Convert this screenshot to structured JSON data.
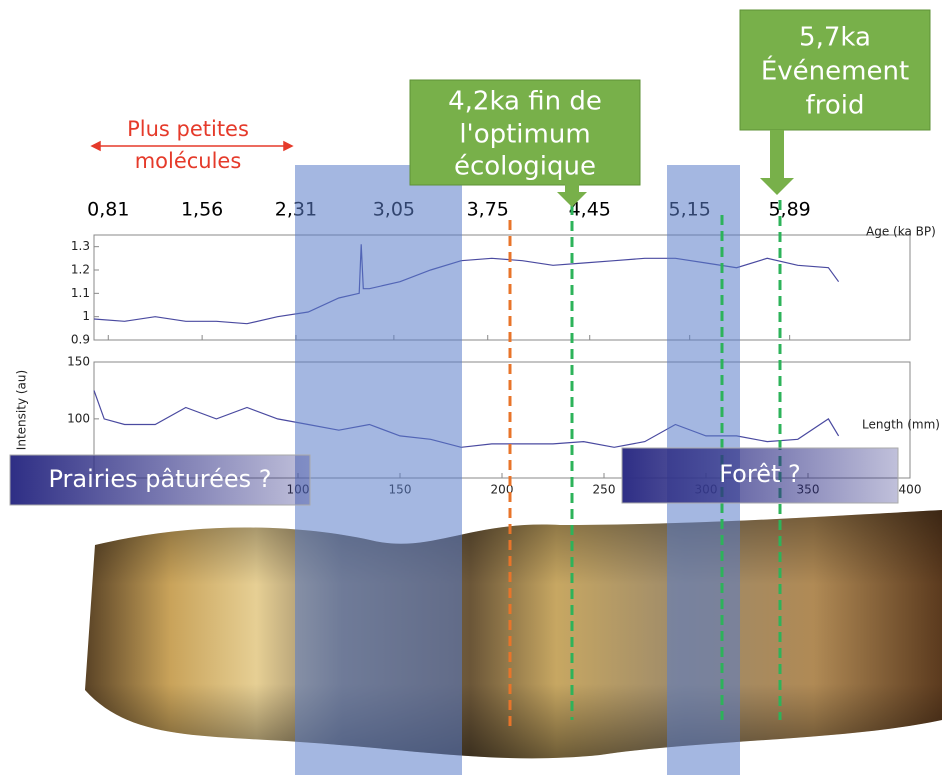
{
  "chart_data": [
    {
      "type": "line",
      "x_label": "Age (ka BP)",
      "xlim": [
        0,
        400
      ],
      "xticks": [
        {
          "value": 7,
          "label": "0,81"
        },
        {
          "value": 53,
          "label": "1,56"
        },
        {
          "value": 99,
          "label": "2,31"
        },
        {
          "value": 147,
          "label": "3,05"
        },
        {
          "value": 193,
          "label": "3,75"
        },
        {
          "value": 243,
          "label": "4,45"
        },
        {
          "value": 292,
          "label": "5,15"
        },
        {
          "value": 341,
          "label": "5,89"
        }
      ],
      "ylim": [
        0.9,
        1.35
      ],
      "yticks": [
        {
          "value": 0.9,
          "label": "0.9"
        },
        1,
        {
          "value": 1.1,
          "label": "1.1"
        },
        {
          "value": 1.2,
          "label": "1.2"
        },
        {
          "value": 1.3,
          "label": "1.3"
        }
      ],
      "x": [
        0,
        15,
        30,
        45,
        60,
        75,
        90,
        105,
        120,
        130,
        131,
        132,
        135,
        150,
        165,
        180,
        195,
        210,
        225,
        240,
        255,
        270,
        285,
        300,
        315,
        330,
        345,
        360,
        365
      ],
      "series": [
        {
          "color": "#4a4aa0",
          "values": [
            0.99,
            0.98,
            1.0,
            0.98,
            0.98,
            0.97,
            1.0,
            1.02,
            1.08,
            1.1,
            1.31,
            1.12,
            1.12,
            1.15,
            1.2,
            1.24,
            1.25,
            1.24,
            1.22,
            1.23,
            1.24,
            1.25,
            1.25,
            1.23,
            1.21,
            1.25,
            1.22,
            1.21,
            1.15
          ]
        }
      ]
    },
    {
      "type": "line",
      "y_label": "Intensity (au)",
      "x_label": "Length (mm)",
      "xlim": [
        0,
        400
      ],
      "xticks": [
        100,
        150,
        200,
        250,
        300,
        350,
        400
      ],
      "ylim": [
        48,
        150
      ],
      "yticks": [
        100,
        150
      ],
      "x": [
        0,
        5,
        15,
        30,
        45,
        60,
        75,
        90,
        105,
        120,
        135,
        150,
        165,
        180,
        195,
        210,
        225,
        240,
        255,
        270,
        285,
        300,
        315,
        330,
        345,
        360,
        365
      ],
      "series": [
        {
          "color": "#4a4aa0",
          "values": [
            125,
            100,
            95,
            95,
            110,
            100,
            110,
            100,
            95,
            90,
            95,
            85,
            82,
            75,
            78,
            78,
            78,
            80,
            75,
            80,
            95,
            85,
            85,
            80,
            82,
            100,
            85
          ]
        }
      ]
    }
  ],
  "callouts": [
    {
      "lines": [
        "4,2ka fin de",
        "l'optimum",
        "écologique"
      ]
    },
    {
      "lines": [
        "5,7ka",
        "Événement",
        "froid"
      ]
    }
  ],
  "arrow_note": {
    "lines": [
      "Plus petites",
      "molécules"
    ]
  },
  "banners": [
    "Prairies pâturées ?",
    "Forêt ?"
  ]
}
